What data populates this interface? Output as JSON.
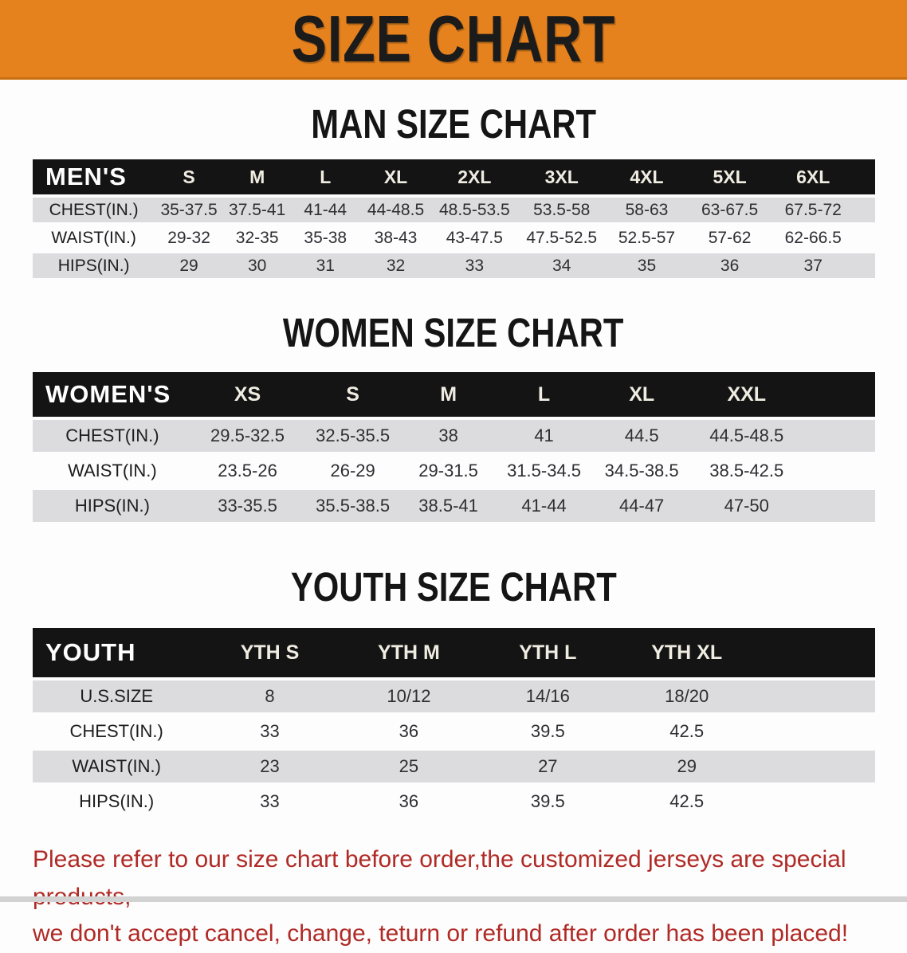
{
  "banner": {
    "title": "SIZE CHART",
    "bg_color": "#E5821E",
    "text_color": "#1b1b1b"
  },
  "colors": {
    "table_header_bg": "#141414",
    "table_header_text": "#efece2",
    "row_shade": "#dcdcdf",
    "disclaimer_red": "#b02a26"
  },
  "sections": [
    {
      "heading": "MAN SIZE CHART",
      "table": {
        "header_label": "MEN'S",
        "columns": [
          "S",
          "M",
          "L",
          "XL",
          "2XL",
          "3XL",
          "4XL",
          "5XL",
          "6XL"
        ],
        "rows": [
          {
            "label": "CHEST(IN.)",
            "values": [
              "35-37.5",
              "37.5-41",
              "41-44",
              "44-48.5",
              "48.5-53.5",
              "53.5-58",
              "58-63",
              "63-67.5",
              "67.5-72"
            ]
          },
          {
            "label": "WAIST(IN.)",
            "values": [
              "29-32",
              "32-35",
              "35-38",
              "38-43",
              "43-47.5",
              "47.5-52.5",
              "52.5-57",
              "57-62",
              "62-66.5"
            ]
          },
          {
            "label": "HIPS(IN.)",
            "values": [
              "29",
              "30",
              "31",
              "32",
              "33",
              "34",
              "35",
              "36",
              "37"
            ]
          }
        ]
      }
    },
    {
      "heading": "WOMEN SIZE CHART",
      "table": {
        "header_label": "WOMEN'S",
        "columns": [
          "XS",
          "S",
          "M",
          "L",
          "XL",
          "XXL"
        ],
        "rows": [
          {
            "label": "CHEST(IN.)",
            "values": [
              "29.5-32.5",
              "32.5-35.5",
              "38",
              "41",
              "44.5",
              "44.5-48.5"
            ]
          },
          {
            "label": "WAIST(IN.)",
            "values": [
              "23.5-26",
              "26-29",
              "29-31.5",
              "31.5-34.5",
              "34.5-38.5",
              "38.5-42.5"
            ]
          },
          {
            "label": "HIPS(IN.)",
            "values": [
              "33-35.5",
              "35.5-38.5",
              "38.5-41",
              "41-44",
              "44-47",
              "47-50"
            ]
          }
        ]
      }
    },
    {
      "heading": "YOUTH SIZE CHART",
      "table": {
        "header_label": "YOUTH",
        "columns": [
          "YTH S",
          "YTH M",
          "YTH L",
          "YTH XL"
        ],
        "rows": [
          {
            "label": "U.S.SIZE",
            "values": [
              "8",
              "10/12",
              "14/16",
              "18/20"
            ]
          },
          {
            "label": "CHEST(IN.)",
            "values": [
              "33",
              "36",
              "39.5",
              "42.5"
            ]
          },
          {
            "label": "WAIST(IN.)",
            "values": [
              "23",
              "25",
              "27",
              "29"
            ]
          },
          {
            "label": "HIPS(IN.)",
            "values": [
              "33",
              "36",
              "39.5",
              "42.5"
            ]
          }
        ]
      }
    }
  ],
  "footer": {
    "lines": [
      "Please refer to our size chart before order,the customized jerseys are special products,",
      "we don't accept cancel, change, teturn or refund after order has been placed!"
    ]
  }
}
